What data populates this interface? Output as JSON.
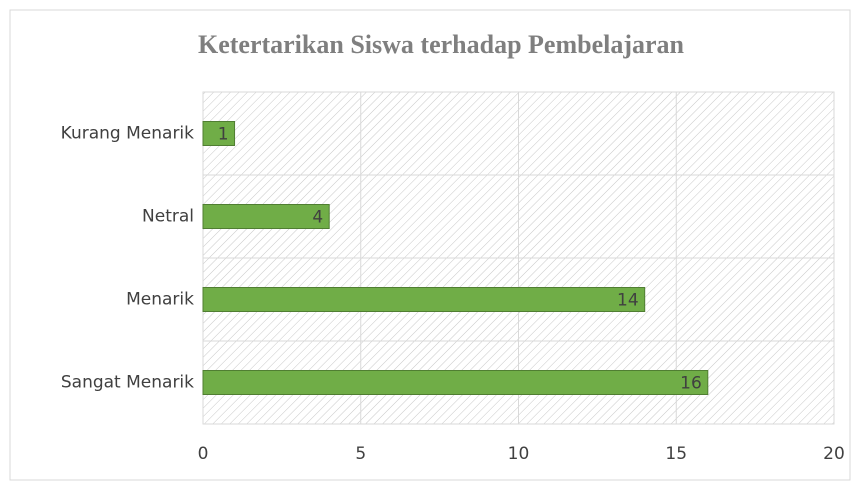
{
  "chart_data": {
    "type": "bar",
    "orientation": "horizontal",
    "title": "Ketertarikan Siswa terhadap Pembelajaran",
    "categories": [
      "Kurang Menarik",
      "Netral",
      "Menarik",
      "Sangat Menarik"
    ],
    "values": [
      1,
      4,
      14,
      16
    ],
    "color": "#70ad47",
    "xlim": [
      0,
      20
    ],
    "xticks": [
      0,
      5,
      10,
      15,
      20
    ],
    "grid": true
  }
}
